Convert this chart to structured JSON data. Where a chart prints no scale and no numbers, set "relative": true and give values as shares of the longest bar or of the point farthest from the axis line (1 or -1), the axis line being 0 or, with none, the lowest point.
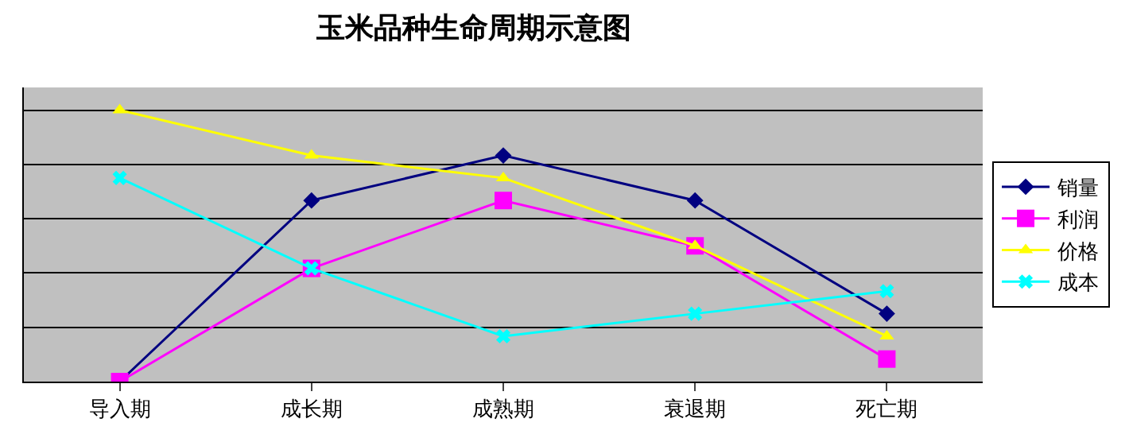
{
  "chart_data": {
    "type": "line",
    "title": "玉米品种生命周期示意图",
    "relative": true,
    "categories": [
      "导入期",
      "成长期",
      "成熟期",
      "衰退期",
      "死亡期"
    ],
    "series": [
      {
        "name": "销量",
        "color": "#000080",
        "marker": "diamond",
        "values": [
          0,
          0.667,
          0.833,
          0.667,
          0.25
        ]
      },
      {
        "name": "利润",
        "color": "#ff00ff",
        "marker": "square",
        "values": [
          0,
          0.417,
          0.667,
          0.5,
          0.083
        ]
      },
      {
        "name": "价格",
        "color": "#ffff00",
        "marker": "triangle",
        "values": [
          1,
          0.833,
          0.75,
          0.5,
          0.167
        ]
      },
      {
        "name": "成本",
        "color": "#00ffff",
        "marker": "cross",
        "values": [
          0.75,
          0.417,
          0.167,
          0.25,
          0.333
        ]
      }
    ],
    "grid": "y",
    "legend": "right"
  }
}
